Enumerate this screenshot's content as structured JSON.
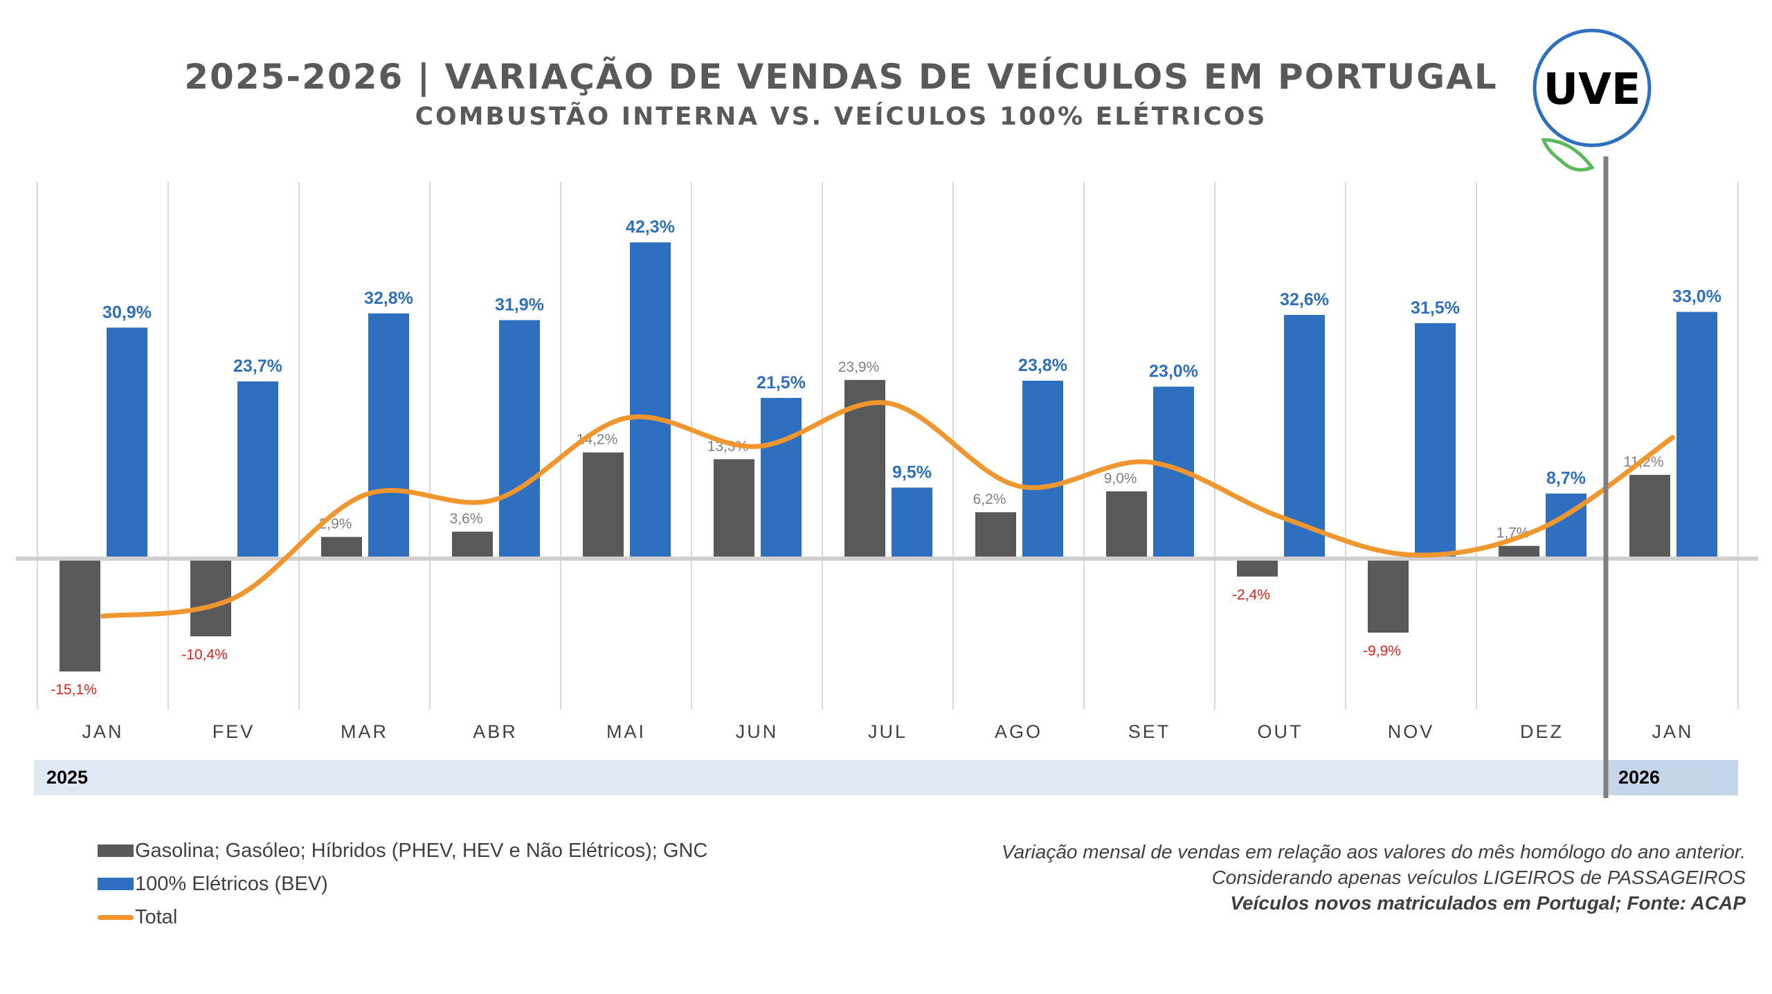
{
  "title": "2025-2026 | VARIAÇÃO DE VENDAS DE VEÍCULOS EM PORTUGAL",
  "subtitle": "COMBUSTÃO INTERNA VS. VEÍCULOS 100% ELÉTRICOS",
  "logo_text": "UVE",
  "colors": {
    "combustion": "#595959",
    "bev": "#2e6fbf",
    "total": "#f0962e",
    "negative_label": "#e8201a"
  },
  "years": [
    "2025",
    "2026"
  ],
  "legend": {
    "combustion": "Gasolina; Gasóleo; Híbridos (PHEV, HEV e Não Elétricos); GNC",
    "bev": "100% Elétricos (BEV)",
    "total": "Total"
  },
  "notes": [
    "Variação mensal de vendas em relação aos valores do mês homólogo do ano anterior.",
    "Considerando apenas veículos LIGEIROS de PASSAGEIROS",
    "Veículos novos matriculados em Portugal; Fonte: ACAP"
  ],
  "chart_data": {
    "type": "bar",
    "categories": [
      "JAN",
      "FEV",
      "MAR",
      "ABR",
      "MAI",
      "JUN",
      "JUL",
      "AGO",
      "SET",
      "OUT",
      "NOV",
      "DEZ",
      "JAN"
    ],
    "series": [
      {
        "name": "Gasolina; Gasóleo; Híbridos (PHEV, HEV e Não Elétricos); GNC",
        "type": "bar",
        "values": [
          -15.1,
          -10.4,
          2.9,
          3.6,
          14.2,
          13.3,
          23.9,
          6.2,
          9.0,
          -2.4,
          -9.9,
          1.7,
          11.2
        ],
        "labels": [
          "-15,1%",
          "-10,4%",
          "2,9%",
          "3,6%",
          "14,2%",
          "13,3%",
          "23,9%",
          "6,2%",
          "9,0%",
          "-2,4%",
          "-9,9%",
          "1,7%",
          "11,2%"
        ]
      },
      {
        "name": "100% Elétricos (BEV)",
        "type": "bar",
        "values": [
          30.9,
          23.7,
          32.8,
          31.9,
          42.3,
          21.5,
          9.5,
          23.8,
          23.0,
          32.6,
          31.5,
          8.7,
          33.0
        ],
        "labels": [
          "30,9%",
          "23,7%",
          "32,8%",
          "31,9%",
          "42,3%",
          "21,5%",
          "9,5%",
          "23,8%",
          "23,0%",
          "32,6%",
          "31,5%",
          "8,7%",
          "33,0%"
        ]
      },
      {
        "name": "Total",
        "type": "line",
        "values": [
          -7.7,
          -5.3,
          8.5,
          7.9,
          18.8,
          15.0,
          20.8,
          9.7,
          12.9,
          5.6,
          0.5,
          4.1,
          16.2
        ]
      }
    ],
    "ylim": [
      -20,
      50
    ],
    "grid": "vertical category separators",
    "legend_position": "bottom-left"
  }
}
